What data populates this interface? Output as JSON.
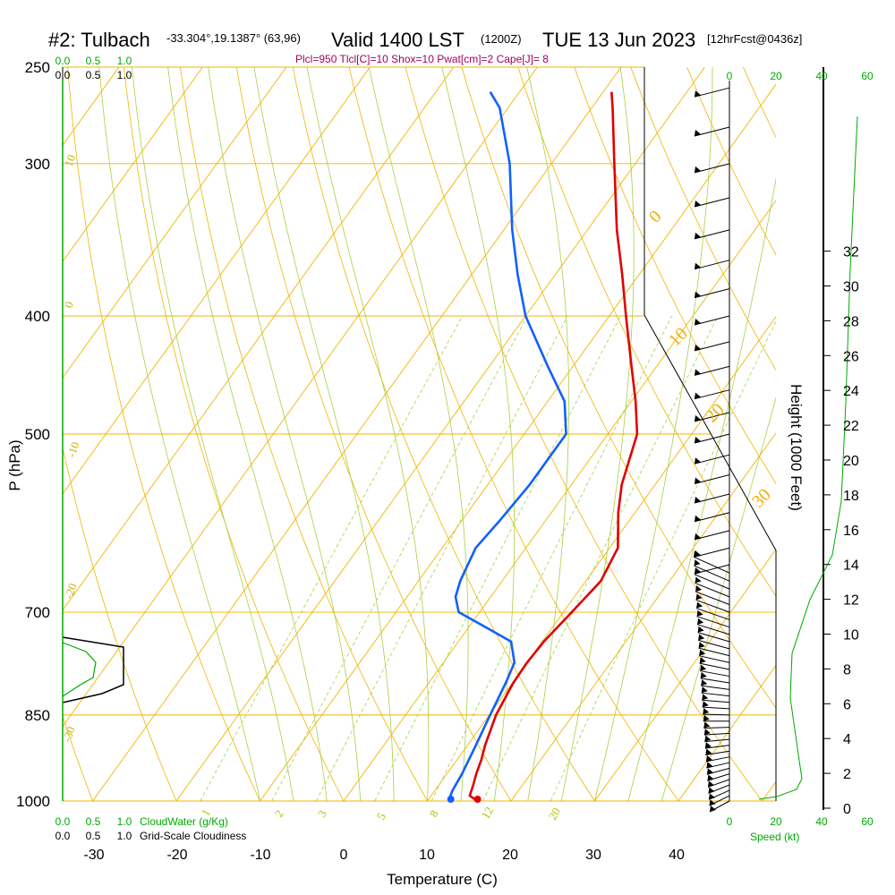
{
  "header": {
    "station": "#2: Tulbach",
    "coords": "-33.304°,19.1387° (63,96)",
    "valid": "Valid 1400 LST",
    "z_time": "(1200Z)",
    "date": "TUE 13 Jun 2023",
    "forecast": "[12hrFcst@0436z]"
  },
  "indices": "Plcl=950 Tlcl[C]=10 Shox=10 Pwat[cm]=2 Cape[J]= 8",
  "colors": {
    "isobar": "#f0b400",
    "isotherm": "#f0b400",
    "dry_adiabat": "#f0b400",
    "moist_adiabat": "#a8d040",
    "mixing_ratio": "#a8d040",
    "temperature": "#e00000",
    "dewpoint": "#1060ff",
    "cloudwater": "#00aa00",
    "cloudiness": "#000000",
    "wind_speed": "#00aa00"
  },
  "chart_data": {
    "type": "line",
    "title": "#2: Tulbach",
    "xlabel": "Temperature (C)",
    "ylabel": "P (hPa)",
    "y2label": "Height (1000 Feet)",
    "x_ticks": [
      "-30",
      "-20",
      "-10",
      "0",
      "10",
      "20",
      "30",
      "40"
    ],
    "x_range": [
      -34,
      36
    ],
    "p_ticks": [
      "250",
      "300",
      "400",
      "500",
      "700",
      "850",
      "1000"
    ],
    "p_range": [
      250,
      1000
    ],
    "height_ticks": [
      "0",
      "2",
      "4",
      "6",
      "8",
      "10",
      "12",
      "14",
      "16",
      "18",
      "20",
      "22",
      "24",
      "26",
      "28",
      "30",
      "32"
    ],
    "dry_adiabat_labels": [
      "10",
      "0",
      "-10",
      "-20",
      "-30",
      "0",
      "10",
      "20",
      "30"
    ],
    "moist_adiabat_labels": [
      "5",
      "8",
      "12",
      "20"
    ],
    "mixing_ratio_labels": [
      "1",
      "2",
      "3"
    ],
    "temperature_profile": [
      {
        "p": 1000,
        "t": 16.0
      },
      {
        "p": 990,
        "t": 14.6
      },
      {
        "p": 970,
        "t": 14.1
      },
      {
        "p": 950,
        "t": 13.5
      },
      {
        "p": 925,
        "t": 12.9
      },
      {
        "p": 900,
        "t": 12.1
      },
      {
        "p": 850,
        "t": 10.8
      },
      {
        "p": 800,
        "t": 10.1
      },
      {
        "p": 770,
        "t": 10.0
      },
      {
        "p": 740,
        "t": 10.2
      },
      {
        "p": 700,
        "t": 11.0
      },
      {
        "p": 660,
        "t": 11.8
      },
      {
        "p": 620,
        "t": 11.0
      },
      {
        "p": 580,
        "t": 8.0
      },
      {
        "p": 550,
        "t": 6.0
      },
      {
        "p": 500,
        "t": 3.5
      },
      {
        "p": 470,
        "t": 0.5
      },
      {
        "p": 440,
        "t": -3.0
      },
      {
        "p": 400,
        "t": -8.0
      },
      {
        "p": 370,
        "t": -12.0
      },
      {
        "p": 340,
        "t": -16.5
      },
      {
        "p": 300,
        "t": -22.5
      },
      {
        "p": 270,
        "t": -27.5
      },
      {
        "p": 262,
        "t": -29.0
      }
    ],
    "dewpoint_profile": [
      {
        "p": 1000,
        "t": 12.8
      },
      {
        "p": 995,
        "t": 12.4
      },
      {
        "p": 980,
        "t": 12.1
      },
      {
        "p": 950,
        "t": 11.8
      },
      {
        "p": 900,
        "t": 11.0
      },
      {
        "p": 850,
        "t": 10.1
      },
      {
        "p": 800,
        "t": 9.2
      },
      {
        "p": 770,
        "t": 8.5
      },
      {
        "p": 740,
        "t": 6.3
      },
      {
        "p": 720,
        "t": 2.0
      },
      {
        "p": 700,
        "t": -2.5
      },
      {
        "p": 680,
        "t": -4.2
      },
      {
        "p": 660,
        "t": -5.0
      },
      {
        "p": 620,
        "t": -6.0
      },
      {
        "p": 590,
        "t": -5.5
      },
      {
        "p": 550,
        "t": -5.0
      },
      {
        "p": 500,
        "t": -5.0
      },
      {
        "p": 470,
        "t": -8.0
      },
      {
        "p": 440,
        "t": -13.0
      },
      {
        "p": 400,
        "t": -20.0
      },
      {
        "p": 370,
        "t": -24.5
      },
      {
        "p": 340,
        "t": -29.0
      },
      {
        "p": 300,
        "t": -35.0
      },
      {
        "p": 270,
        "t": -41.0
      },
      {
        "p": 262,
        "t": -43.5
      }
    ],
    "surface_temperature": 16.0,
    "surface_dewpoint": 12.8,
    "wind_barbs_p": [
      260,
      280,
      300,
      320,
      340,
      360,
      380,
      400,
      420,
      440,
      460,
      480,
      500,
      520,
      540,
      560,
      580,
      600,
      620,
      640,
      650,
      660,
      670,
      680,
      690,
      700,
      710,
      720,
      730,
      740,
      750,
      760,
      770,
      780,
      790,
      800,
      810,
      820,
      830,
      840,
      850,
      860,
      870,
      880,
      890,
      900,
      910,
      920,
      930,
      940,
      950,
      960,
      970,
      980,
      990,
      1000
    ],
    "cloudwater_axis_ticks": [
      "0.0",
      "0.5",
      "1.0"
    ],
    "cloudiness_axis_ticks": [
      "0.0",
      "0.5",
      "1.0"
    ],
    "cloudwater_label": "CloudWater (g/Kg)",
    "cloudiness_label": "Grid-Scale Cloudiness",
    "speed_axis_ticks": [
      "0",
      "20",
      "40",
      "60"
    ],
    "speed_label": "Speed (kt)"
  }
}
